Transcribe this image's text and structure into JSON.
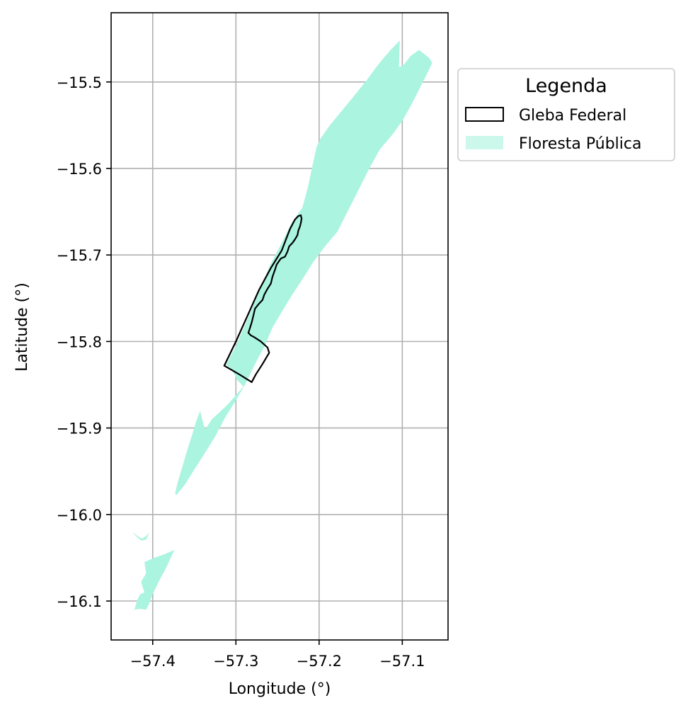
{
  "chart_data": {
    "type": "map",
    "xlabel": "Longitude (°)",
    "ylabel": "Latitude (°)",
    "xlim": [
      -57.45,
      -57.045
    ],
    "ylim": [
      -16.145,
      -15.42
    ],
    "xticks": [
      -57.4,
      -57.3,
      -57.2,
      -57.1
    ],
    "yticks": [
      -15.5,
      -15.6,
      -15.7,
      -15.8,
      -15.9,
      -16.0,
      -16.1
    ],
    "xtick_labels": [
      "−57.4",
      "−57.3",
      "−57.2",
      "−57.1"
    ],
    "ytick_labels": [
      "−15.5",
      "−15.6",
      "−15.7",
      "−15.8",
      "−15.9",
      "−16.0",
      "−16.1"
    ],
    "grid": true,
    "legend": {
      "title": "Legenda",
      "placement": "outside-upper-right",
      "entries": [
        {
          "label": "Gleba Federal",
          "style": "outline",
          "color": "#000000"
        },
        {
          "label": "Floresta Pública",
          "style": "fill",
          "color": "#aaf4e0"
        }
      ]
    },
    "layers": [
      {
        "name": "Floresta Pública",
        "color": "#aaf4e0",
        "polygons": [
          [
            [
              -57.372,
              -15.978
            ],
            [
              -57.361,
              -15.965
            ],
            [
              -57.35,
              -15.948
            ],
            [
              -57.338,
              -15.93
            ],
            [
              -57.325,
              -15.91
            ],
            [
              -57.313,
              -15.888
            ],
            [
              -57.3,
              -15.868
            ],
            [
              -57.288,
              -15.848
            ],
            [
              -57.277,
              -15.826
            ],
            [
              -57.266,
              -15.806
            ],
            [
              -57.256,
              -15.784
            ],
            [
              -57.245,
              -15.766
            ],
            [
              -57.233,
              -15.747
            ],
            [
              -57.22,
              -15.728
            ],
            [
              -57.207,
              -15.708
            ],
            [
              -57.193,
              -15.69
            ],
            [
              -57.178,
              -15.673
            ],
            [
              -57.168,
              -15.654
            ],
            [
              -57.158,
              -15.635
            ],
            [
              -57.148,
              -15.616
            ],
            [
              -57.138,
              -15.597
            ],
            [
              -57.127,
              -15.578
            ],
            [
              -57.112,
              -15.561
            ],
            [
              -57.1,
              -15.545
            ],
            [
              -57.09,
              -15.528
            ],
            [
              -57.08,
              -15.509
            ],
            [
              -57.071,
              -15.492
            ],
            [
              -57.064,
              -15.478
            ],
            [
              -57.068,
              -15.472
            ],
            [
              -57.08,
              -15.463
            ],
            [
              -57.09,
              -15.47
            ],
            [
              -57.098,
              -15.48
            ],
            [
              -57.104,
              -15.483
            ],
            [
              -57.103,
              -15.452
            ],
            [
              -57.113,
              -15.462
            ],
            [
              -57.123,
              -15.473
            ],
            [
              -57.133,
              -15.485
            ],
            [
              -57.142,
              -15.497
            ],
            [
              -57.152,
              -15.509
            ],
            [
              -57.163,
              -15.522
            ],
            [
              -57.175,
              -15.536
            ],
            [
              -57.187,
              -15.55
            ],
            [
              -57.198,
              -15.565
            ],
            [
              -57.203,
              -15.575
            ],
            [
              -57.208,
              -15.597
            ],
            [
              -57.213,
              -15.62
            ],
            [
              -57.22,
              -15.645
            ],
            [
              -57.233,
              -15.663
            ],
            [
              -57.246,
              -15.688
            ],
            [
              -57.259,
              -15.712
            ],
            [
              -57.269,
              -15.735
            ],
            [
              -57.28,
              -15.76
            ],
            [
              -57.291,
              -15.785
            ],
            [
              -57.3,
              -15.805
            ],
            [
              -57.312,
              -15.827
            ],
            [
              -57.305,
              -15.832
            ],
            [
              -57.298,
              -15.845
            ],
            [
              -57.291,
              -15.852
            ],
            [
              -57.3,
              -15.862
            ],
            [
              -57.31,
              -15.873
            ],
            [
              -57.32,
              -15.882
            ],
            [
              -57.329,
              -15.89
            ],
            [
              -57.337,
              -15.902
            ],
            [
              -57.34,
              -15.892
            ],
            [
              -57.343,
              -15.88
            ],
            [
              -57.348,
              -15.893
            ],
            [
              -57.353,
              -15.909
            ],
            [
              -57.358,
              -15.924
            ],
            [
              -57.363,
              -15.94
            ],
            [
              -57.366,
              -15.95
            ],
            [
              -57.37,
              -15.963
            ],
            [
              -57.373,
              -15.975
            ]
          ],
          [
            [
              -57.425,
              -16.02
            ],
            [
              -57.418,
              -16.025
            ],
            [
              -57.413,
              -16.028
            ],
            [
              -57.408,
              -16.025
            ],
            [
              -57.404,
              -16.021
            ],
            [
              -57.408,
              -16.029
            ],
            [
              -57.414,
              -16.03
            ],
            [
              -57.42,
              -16.025
            ]
          ],
          [
            [
              -57.41,
              -16.055
            ],
            [
              -57.398,
              -16.05
            ],
            [
              -57.386,
              -16.046
            ],
            [
              -57.374,
              -16.041
            ],
            [
              -57.383,
              -16.06
            ],
            [
              -57.393,
              -16.078
            ],
            [
              -57.4,
              -16.092
            ],
            [
              -57.404,
              -16.102
            ],
            [
              -57.408,
              -16.11
            ],
            [
              -57.416,
              -16.109
            ],
            [
              -57.422,
              -16.11
            ],
            [
              -57.419,
              -16.1
            ],
            [
              -57.415,
              -16.092
            ],
            [
              -57.41,
              -16.09
            ],
            [
              -57.414,
              -16.078
            ],
            [
              -57.408,
              -16.068
            ]
          ]
        ]
      },
      {
        "name": "Gleba Federal",
        "color": "#000000",
        "polygons": [
          [
            [
              -57.314,
              -15.828
            ],
            [
              -57.3,
              -15.8
            ],
            [
              -57.286,
              -15.77
            ],
            [
              -57.272,
              -15.74
            ],
            [
              -57.258,
              -15.715
            ],
            [
              -57.245,
              -15.695
            ],
            [
              -57.235,
              -15.67
            ],
            [
              -57.229,
              -15.659
            ],
            [
              -57.225,
              -15.655
            ],
            [
              -57.222,
              -15.654
            ],
            [
              -57.221,
              -15.658
            ],
            [
              -57.222,
              -15.663
            ],
            [
              -57.223,
              -15.667
            ],
            [
              -57.225,
              -15.672
            ],
            [
              -57.226,
              -15.677
            ],
            [
              -57.229,
              -15.682
            ],
            [
              -57.232,
              -15.686
            ],
            [
              -57.236,
              -15.69
            ],
            [
              -57.238,
              -15.696
            ],
            [
              -57.241,
              -15.702
            ],
            [
              -57.246,
              -15.704
            ],
            [
              -57.251,
              -15.711
            ],
            [
              -57.253,
              -15.717
            ],
            [
              -57.256,
              -15.725
            ],
            [
              -57.258,
              -15.733
            ],
            [
              -57.262,
              -15.739
            ],
            [
              -57.266,
              -15.746
            ],
            [
              -57.268,
              -15.752
            ],
            [
              -57.272,
              -15.756
            ],
            [
              -57.277,
              -15.762
            ],
            [
              -57.279,
              -15.77
            ],
            [
              -57.281,
              -15.778
            ],
            [
              -57.283,
              -15.784
            ],
            [
              -57.285,
              -15.79
            ],
            [
              -57.282,
              -15.793
            ],
            [
              -57.278,
              -15.795
            ],
            [
              -57.27,
              -15.8
            ],
            [
              -57.262,
              -15.807
            ],
            [
              -57.26,
              -15.813
            ],
            [
              -57.268,
              -15.826
            ],
            [
              -57.276,
              -15.838
            ],
            [
              -57.281,
              -15.847
            ],
            [
              -57.296,
              -15.838
            ],
            [
              -57.314,
              -15.828
            ]
          ]
        ]
      }
    ]
  }
}
